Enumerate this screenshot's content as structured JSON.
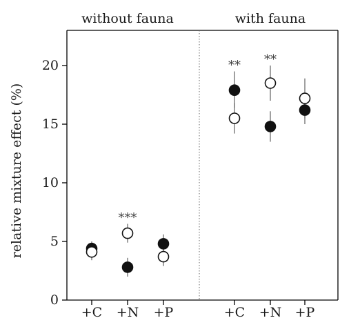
{
  "chart_data": {
    "type": "scatter",
    "title": "",
    "xlabel": "",
    "ylabel": "relative mixture effect (%)",
    "ylim": [
      0,
      23
    ],
    "y_ticks": [
      0,
      5,
      10,
      15,
      20
    ],
    "grid": false,
    "legend": "none",
    "panels": [
      {
        "label": "without fauna",
        "categories": [
          "+C",
          "+N",
          "+P"
        ],
        "series": [
          {
            "marker": "filled",
            "values": [
              4.4,
              2.8,
              4.8
            ],
            "err_low": [
              3.8,
              2.0,
              4.1
            ],
            "err_high": [
              5.0,
              3.6,
              5.6
            ]
          },
          {
            "marker": "open",
            "values": [
              4.1,
              5.7,
              3.7
            ],
            "err_low": [
              3.4,
              4.9,
              2.9
            ],
            "err_high": [
              4.8,
              6.5,
              4.5
            ]
          }
        ],
        "significance": [
          "",
          "***",
          ""
        ]
      },
      {
        "label": "with fauna",
        "categories": [
          "+C",
          "+N",
          "+P"
        ],
        "series": [
          {
            "marker": "filled",
            "values": [
              17.9,
              14.8,
              16.2
            ],
            "err_low": [
              16.4,
              13.5,
              15.0
            ],
            "err_high": [
              19.5,
              16.1,
              17.4
            ]
          },
          {
            "marker": "open",
            "values": [
              15.5,
              18.5,
              17.2
            ],
            "err_low": [
              14.2,
              17.0,
              15.5
            ],
            "err_high": [
              16.8,
              20.0,
              18.9
            ]
          }
        ],
        "significance": [
          "**",
          "**",
          ""
        ]
      }
    ]
  }
}
